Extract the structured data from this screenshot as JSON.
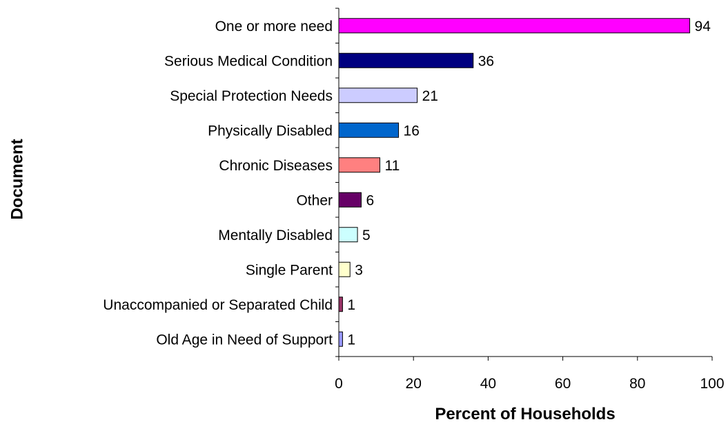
{
  "chart_data": {
    "type": "bar",
    "orientation": "horizontal",
    "title": "",
    "xlabel": "Percent of Households",
    "ylabel": "Document",
    "xlim": [
      0,
      100
    ],
    "xticks": [
      0,
      20,
      40,
      60,
      80,
      100
    ],
    "grid": false,
    "legend": "none",
    "categories": [
      "One or more need",
      "Serious Medical Condition",
      "Special Protection Needs",
      "Physically Disabled",
      "Chronic Diseases",
      "Other",
      "Mentally Disabled",
      "Single Parent",
      "Unaccompanied or Separated Child",
      "Old Age in Need of Support"
    ],
    "values": [
      94,
      36,
      21,
      16,
      11,
      6,
      5,
      3,
      1,
      1
    ],
    "value_labels": [
      "94",
      "36",
      "21",
      "16",
      "11",
      "6",
      "5",
      "3",
      "1",
      "1"
    ],
    "colors": [
      "#FF00FF",
      "#000080",
      "#CCCCFF",
      "#0066CC",
      "#FF8080",
      "#660066",
      "#CCFFFF",
      "#FFFFCC",
      "#993366",
      "#9999FF"
    ]
  }
}
